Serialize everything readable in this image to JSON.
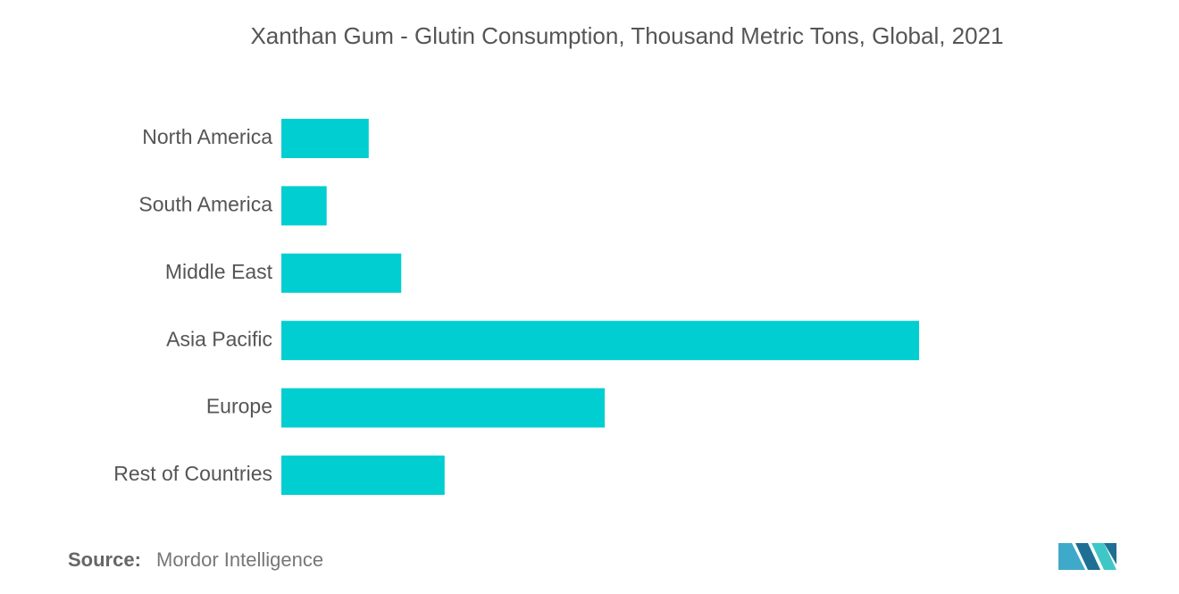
{
  "chart_data": {
    "type": "bar",
    "orientation": "horizontal",
    "title": "Xanthan Gum - Glutin Consumption, Thousand Metric Tons, Global, 2021",
    "categories": [
      "North America",
      "South America",
      "Middle East",
      "Asia Pacific",
      "Europe",
      "Rest of Countries"
    ],
    "values": [
      13.7,
      7.1,
      18.8,
      100,
      50.7,
      25.6
    ],
    "color": "#00ced1",
    "source_label": "Source:",
    "source": "Mordor Intelligence"
  }
}
